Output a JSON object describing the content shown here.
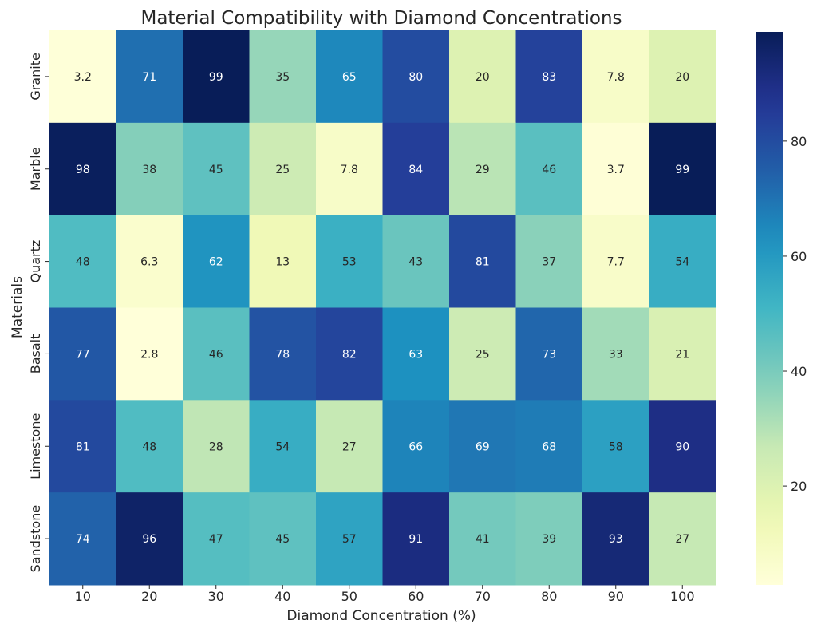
{
  "chart_data": {
    "type": "heatmap",
    "title": "Material Compatibility with Diamond Concentrations",
    "xlabel": "Diamond Concentration (%)",
    "ylabel": "Materials",
    "x_categories": [
      "10",
      "20",
      "30",
      "40",
      "50",
      "60",
      "70",
      "80",
      "90",
      "100"
    ],
    "y_categories": [
      "Granite",
      "Marble",
      "Quartz",
      "Basalt",
      "Limestone",
      "Sandstone"
    ],
    "values": [
      [
        3.2,
        71,
        99,
        35,
        65,
        80,
        20,
        83,
        7.8,
        20
      ],
      [
        98,
        38,
        45,
        25,
        7.8,
        84,
        29,
        46,
        3.7,
        99
      ],
      [
        48,
        6.3,
        62,
        13,
        53,
        43,
        81,
        37,
        7.7,
        54
      ],
      [
        77,
        2.8,
        46,
        78,
        82,
        63,
        25,
        73,
        33,
        21
      ],
      [
        81,
        48,
        28,
        54,
        27,
        66,
        69,
        68,
        58,
        90
      ],
      [
        74,
        96,
        47,
        45,
        57,
        91,
        41,
        39,
        93,
        27
      ]
    ],
    "colormap": "YlGnBu",
    "colorbar": {
      "range": [
        2.8,
        99
      ],
      "ticks": [
        20,
        40,
        60,
        80
      ],
      "position": "right"
    },
    "annotations": true,
    "grid": false
  }
}
